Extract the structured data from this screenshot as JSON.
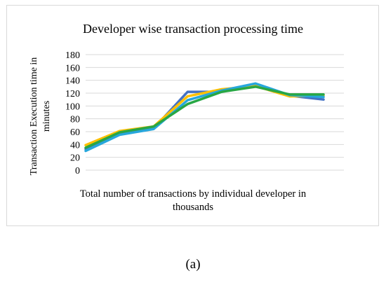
{
  "caption": "(a)",
  "chart_data": {
    "type": "line",
    "title": "Developer wise transaction processing time",
    "ylabel": "Transaction Execution time in minutes",
    "xlabel": "Total number of transactions by individual developer in thousands",
    "ylim": [
      0,
      180
    ],
    "yticks": [
      0,
      20,
      40,
      60,
      80,
      100,
      120,
      140,
      160,
      180
    ],
    "x": [
      1,
      2,
      3,
      4,
      5,
      6,
      7,
      8
    ],
    "grid": true,
    "legend": "none",
    "series": [
      {
        "color": "#4472c4",
        "values": [
          33,
          57,
          65,
          122,
          122,
          134,
          116,
          110
        ]
      },
      {
        "color": "#ffc000",
        "values": [
          39,
          61,
          68,
          115,
          126,
          131,
          115,
          116
        ]
      },
      {
        "color": "#27a7dc",
        "values": [
          30,
          55,
          64,
          109,
          124,
          135,
          117,
          114
        ]
      },
      {
        "color": "#28a745",
        "values": [
          35,
          59,
          68,
          103,
          122,
          130,
          118,
          118
        ]
      }
    ]
  }
}
